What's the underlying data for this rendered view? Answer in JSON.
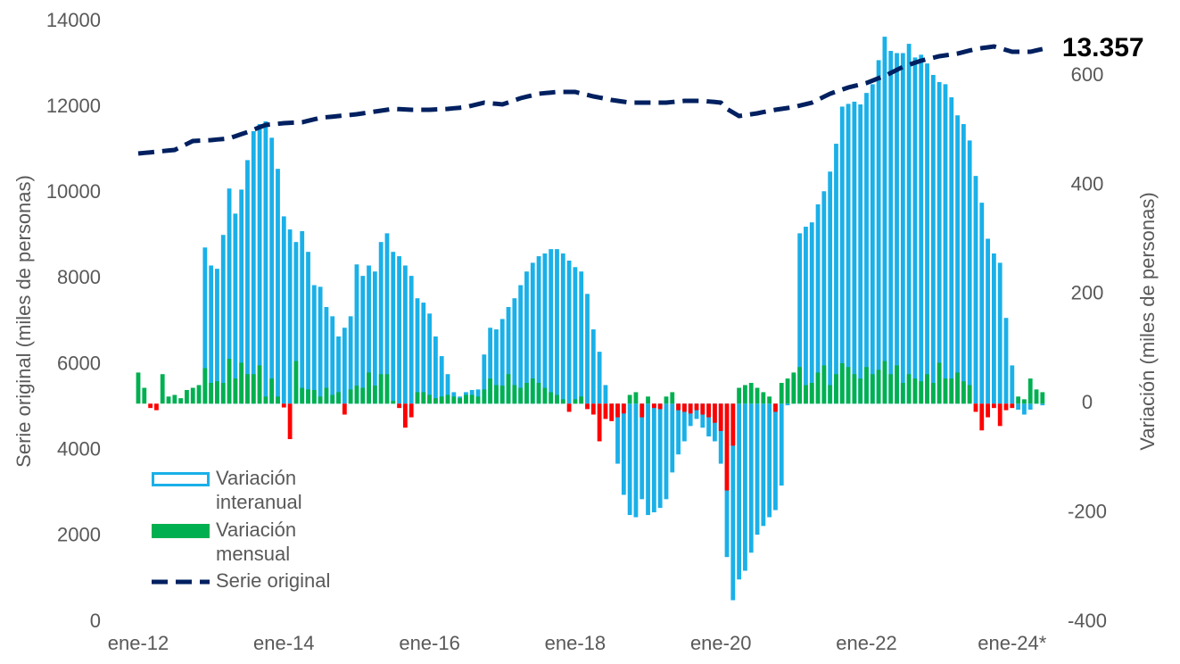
{
  "chart_data": {
    "type": "bar",
    "y_label": "Serie original (miles de personas)",
    "y2_label": "Variación (miles de personas)",
    "categories": [
      "ene-12",
      null,
      null,
      null,
      null,
      null,
      null,
      null,
      null,
      null,
      null,
      null,
      null,
      null,
      null,
      null,
      null,
      null,
      null,
      null,
      null,
      null,
      null,
      null,
      "ene-14",
      null,
      null,
      null,
      null,
      null,
      null,
      null,
      null,
      null,
      null,
      null,
      null,
      null,
      null,
      null,
      null,
      null,
      null,
      null,
      null,
      null,
      null,
      null,
      "ene-16",
      null,
      null,
      null,
      null,
      null,
      null,
      null,
      null,
      null,
      null,
      null,
      null,
      null,
      null,
      null,
      null,
      null,
      null,
      null,
      null,
      null,
      null,
      null,
      "ene-18",
      null,
      null,
      null,
      null,
      null,
      null,
      null,
      null,
      null,
      null,
      null,
      null,
      null,
      null,
      null,
      null,
      null,
      null,
      null,
      null,
      null,
      null,
      null,
      "ene-20",
      null,
      null,
      null,
      null,
      null,
      null,
      null,
      null,
      null,
      null,
      null,
      null,
      null,
      null,
      null,
      null,
      null,
      null,
      null,
      null,
      null,
      null,
      null,
      "ene-22",
      null,
      null,
      null,
      null,
      null,
      null,
      null,
      null,
      null,
      null,
      null,
      null,
      null,
      null,
      null,
      null,
      null,
      null,
      null,
      null,
      null,
      null,
      null,
      "ene-24*",
      null,
      null,
      null,
      null,
      null
    ],
    "ylim": [
      0,
      14000
    ],
    "yticks": [
      0,
      2000,
      4000,
      6000,
      8000,
      10000,
      12000,
      14000
    ],
    "y2lim": [
      -400,
      700
    ],
    "y2ticks": [
      -400,
      -200,
      0,
      200,
      400,
      600
    ],
    "grid": false,
    "legend": "lower left",
    "series": [
      {
        "name": "Variación interanual",
        "type": "bar",
        "axis": "y2",
        "color": "#1ab0e8",
        "values": [
          null,
          null,
          null,
          null,
          null,
          null,
          null,
          null,
          null,
          null,
          null,
          286,
          253,
          247,
          309,
          394,
          348,
          392,
          446,
          499,
          512,
          517,
          487,
          430,
          343,
          319,
          296,
          316,
          278,
          217,
          214,
          177,
          160,
          123,
          139,
          160,
          255,
          234,
          253,
          242,
          296,
          312,
          278,
          270,
          253,
          234,
          193,
          185,
          165,
          123,
          87,
          54,
          21,
          13,
          21,
          25,
          26,
          90,
          139,
          136,
          155,
          177,
          193,
          217,
          242,
          258,
          270,
          275,
          283,
          283,
          275,
          262,
          250,
          242,
          201,
          136,
          95,
          34,
          -28,
          -110,
          -167,
          -204,
          -208,
          -175,
          -204,
          -199,
          -191,
          -175,
          -126,
          -93,
          -69,
          -41,
          -28,
          -44,
          -60,
          -69,
          -110,
          -281,
          -360,
          -322,
          -306,
          -273,
          -240,
          -224,
          -208,
          -195,
          -150,
          -3,
          54,
          312,
          324,
          332,
          365,
          389,
          425,
          476,
          544,
          549,
          553,
          548,
          569,
          585,
          629,
          672,
          646,
          642,
          642,
          659,
          634,
          639,
          623,
          602,
          589,
          585,
          561,
          528,
          512,
          482,
          417,
          368,
          302,
          275,
          258,
          157,
          70,
          -11,
          -20,
          -11,
          5,
          -3
        ]
      },
      {
        "name": "Variación mensual",
        "type": "bar",
        "axis": "y2",
        "color": "#00b050",
        "negative_color": "#ff0000",
        "values": [
          57,
          29,
          -8,
          -12,
          54,
          13,
          16,
          10,
          25,
          29,
          34,
          65,
          38,
          41,
          38,
          82,
          46,
          75,
          54,
          54,
          70,
          13,
          46,
          13,
          -7,
          -65,
          78,
          29,
          26,
          25,
          13,
          29,
          16,
          21,
          -20,
          26,
          33,
          29,
          57,
          33,
          54,
          54,
          5,
          -8,
          -44,
          -25,
          21,
          21,
          16,
          10,
          13,
          16,
          13,
          10,
          16,
          16,
          13,
          26,
          46,
          34,
          33,
          54,
          34,
          29,
          38,
          46,
          38,
          29,
          21,
          16,
          8,
          -15,
          8,
          13,
          -10,
          -20,
          -69,
          -28,
          -32,
          -25,
          -18,
          16,
          21,
          -25,
          13,
          -8,
          -10,
          13,
          21,
          -12,
          -15,
          -18,
          -12,
          -20,
          -25,
          -35,
          -50,
          -159,
          -77,
          29,
          34,
          38,
          29,
          21,
          13,
          -15,
          38,
          46,
          57,
          67,
          34,
          38,
          57,
          70,
          34,
          54,
          74,
          67,
          54,
          46,
          67,
          54,
          62,
          78,
          54,
          70,
          38,
          54,
          46,
          41,
          54,
          38,
          75,
          46,
          46,
          57,
          41,
          34,
          -15,
          -49,
          -25,
          -8,
          -41,
          -12,
          -8,
          13,
          8,
          46,
          26,
          21
        ]
      },
      {
        "name": "Serie original",
        "type": "line",
        "color": "#002060",
        "values": [
          10921,
          10935,
          10949,
          10963,
          10977,
          10991,
          11005,
          11074,
          11144,
          11213,
          11220,
          11227,
          11234,
          11248,
          11261,
          11275,
          11324,
          11372,
          11421,
          11476,
          11532,
          11587,
          11601,
          11615,
          11629,
          11636,
          11643,
          11650,
          11685,
          11719,
          11754,
          11768,
          11781,
          11795,
          11809,
          11823,
          11837,
          11858,
          11878,
          11899,
          11920,
          11941,
          11962,
          11955,
          11948,
          11941,
          11941,
          11941,
          11941,
          11948,
          11955,
          11962,
          11976,
          11989,
          12003,
          12038,
          12072,
          12107,
          12093,
          12080,
          12066,
          12114,
          12163,
          12211,
          12246,
          12280,
          12315,
          12329,
          12343,
          12357,
          12357,
          12357,
          12357,
          12322,
          12288,
          12253,
          12225,
          12198,
          12170,
          12149,
          12128,
          12107,
          12107,
          12107,
          12107,
          12107,
          12107,
          12107,
          12121,
          12135,
          12149,
          12149,
          12149,
          12149,
          12135,
          12121,
          12107,
          11962,
          11879,
          11795,
          11816,
          11837,
          11858,
          11886,
          11913,
          11941,
          11962,
          11982,
          12003,
          12038,
          12072,
          12107,
          12176,
          12246,
          12315,
          12364,
          12412,
          12461,
          12496,
          12530,
          12565,
          12620,
          12676,
          12731,
          12800,
          12870,
          12939,
          12988,
          13036,
          13085,
          13120,
          13154,
          13189,
          13210,
          13231,
          13252,
          13287,
          13321,
          13356,
          13377,
          13397,
          13418,
          13376,
          13335,
          13293,
          13293,
          13293,
          13293,
          13325,
          13357
        ],
        "value_labels": [
          null,
          null,
          null,
          null,
          null,
          null,
          null,
          null,
          null,
          null,
          null,
          null,
          null,
          null,
          null,
          null,
          null,
          null,
          null,
          null,
          null,
          null,
          null,
          null,
          null,
          null,
          null,
          null,
          null,
          null,
          null,
          null,
          null,
          null,
          null,
          null,
          null,
          null,
          null,
          null,
          null,
          null,
          null,
          null,
          null,
          null,
          null,
          null,
          null,
          null,
          null,
          null,
          null,
          null,
          null,
          null,
          null,
          null,
          null,
          null,
          null,
          null,
          null,
          null,
          null,
          null,
          null,
          null,
          null,
          null,
          null,
          null,
          null,
          null,
          null,
          null,
          null,
          null,
          null,
          null,
          null,
          null,
          null,
          null,
          null,
          null,
          null,
          null,
          null,
          null,
          null,
          null,
          null,
          null,
          null,
          null,
          null,
          null,
          null,
          null,
          null,
          null,
          null,
          null,
          null,
          null,
          null,
          null,
          null,
          null,
          null,
          null,
          null,
          null,
          null,
          null,
          null,
          null,
          null,
          null,
          null,
          null,
          null,
          null,
          null,
          null,
          null,
          null,
          null,
          null,
          null,
          null,
          null,
          null,
          null,
          null,
          null,
          null,
          null,
          null,
          null,
          null,
          null,
          null,
          null,
          null,
          null,
          null,
          null,
          "13.357"
        ]
      }
    ]
  }
}
